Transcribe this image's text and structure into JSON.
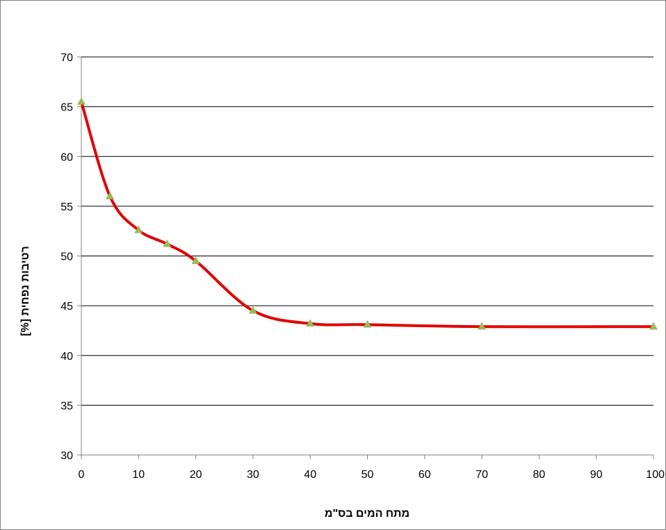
{
  "chart_data": {
    "type": "line",
    "title": "",
    "xlabel": "מתח המים בס\"מ",
    "ylabel": "רטיבות נפחית [%]",
    "xlim": [
      0,
      100
    ],
    "ylim": [
      30,
      70
    ],
    "x_ticks": [
      0,
      10,
      20,
      30,
      40,
      50,
      60,
      70,
      80,
      90,
      100
    ],
    "y_ticks": [
      30,
      35,
      40,
      45,
      50,
      55,
      60,
      65,
      70
    ],
    "grid": "horizontal",
    "legend": "none",
    "smooth": true,
    "line_color": "#e10000",
    "marker": "triangle",
    "marker_color": "#9bbb59",
    "gridline_color": "#000000",
    "axis_color": "#808080",
    "series": [
      {
        "x": [
          0,
          5,
          10,
          15,
          20,
          30,
          40,
          50,
          70,
          100
        ],
        "y": [
          65.5,
          56,
          52.6,
          51.2,
          49.5,
          44.5,
          43.2,
          43.1,
          42.9,
          42.9
        ]
      }
    ]
  }
}
